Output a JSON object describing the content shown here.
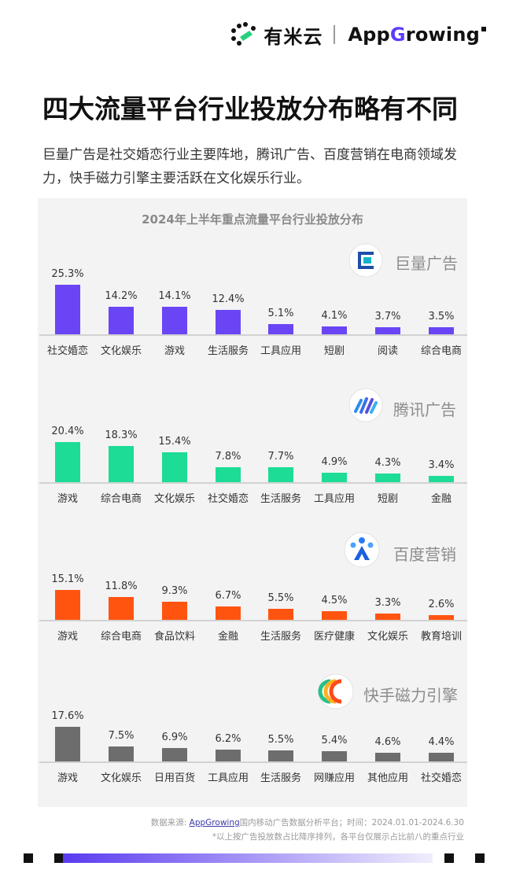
{
  "header": {
    "brand_youmiyun": "有米云",
    "brand_appgrowing_prefix": "App",
    "brand_appgrowing_g": "G",
    "brand_appgrowing_suffix": "rowing"
  },
  "page_title": "四大流量平台行业投放分布略有不同",
  "subtitle": "巨量广告是社交婚恋行业主要阵地，腾讯广告、百度营销在电商领域发力，快手磁力引擎主要活跃在文化娱乐行业。",
  "chart_data": {
    "type": "bar",
    "title": "2024年上半年重点流量平台行业投放分布",
    "value_unit": "%",
    "panels": [
      {
        "platform": "巨量广告",
        "icon": "juliang-logo-icon",
        "color": "#6a45f5",
        "categories": [
          "社交婚恋",
          "文化娱乐",
          "游戏",
          "生活服务",
          "工具应用",
          "短剧",
          "阅读",
          "综合电商"
        ],
        "values": [
          25.3,
          14.2,
          14.1,
          12.4,
          5.1,
          4.1,
          3.7,
          3.5
        ],
        "value_labels": [
          "25.3%",
          "14.2%",
          "14.1%",
          "12.4%",
          "5.1%",
          "4.1%",
          "3.7%",
          "3.5%"
        ]
      },
      {
        "platform": "腾讯广告",
        "icon": "tencent-ads-logo-icon",
        "color": "#1ddc95",
        "categories": [
          "游戏",
          "综合电商",
          "文化娱乐",
          "社交婚恋",
          "生活服务",
          "工具应用",
          "短剧",
          "金融"
        ],
        "values": [
          20.4,
          18.3,
          15.4,
          7.8,
          7.7,
          4.9,
          4.3,
          3.4
        ],
        "value_labels": [
          "20.4%",
          "18.3%",
          "15.4%",
          "7.8%",
          "7.7%",
          "4.9%",
          "4.3%",
          "3.4%"
        ]
      },
      {
        "platform": "百度营销",
        "icon": "baidu-marketing-logo-icon",
        "color": "#ff5410",
        "categories": [
          "游戏",
          "综合电商",
          "食品饮料",
          "金融",
          "生活服务",
          "医疗健康",
          "文化娱乐",
          "教育培训"
        ],
        "values": [
          15.1,
          11.8,
          9.3,
          6.7,
          5.5,
          4.5,
          3.3,
          2.6
        ],
        "value_labels": [
          "15.1%",
          "11.8%",
          "9.3%",
          "6.7%",
          "5.5%",
          "4.5%",
          "3.3%",
          "2.6%"
        ]
      },
      {
        "platform": "快手磁力引擎",
        "icon": "kuaishou-cili-logo-icon",
        "color": "#6d6d6d",
        "categories": [
          "游戏",
          "文化娱乐",
          "日用百货",
          "工具应用",
          "生活服务",
          "网赚应用",
          "其他应用",
          "社交婚恋"
        ],
        "values": [
          17.6,
          7.5,
          6.9,
          6.2,
          5.5,
          5.4,
          4.6,
          4.4
        ],
        "value_labels": [
          "17.6%",
          "7.5%",
          "6.9%",
          "6.2%",
          "5.5%",
          "5.4%",
          "4.6%",
          "4.4%"
        ]
      }
    ]
  },
  "footer": {
    "source_prefix": "数据来源: ",
    "source_link": "AppGrowing",
    "source_suffix": "国内移动广告数据分析平台；时间：2024.01.01-2024.6.30",
    "note": "*以上按广告投放数占比降序排列，各平台仅展示占比前八的重点行业"
  },
  "colors": {
    "accent_purple": "#6a45f5",
    "panel_bg": "#f3f3f3"
  }
}
